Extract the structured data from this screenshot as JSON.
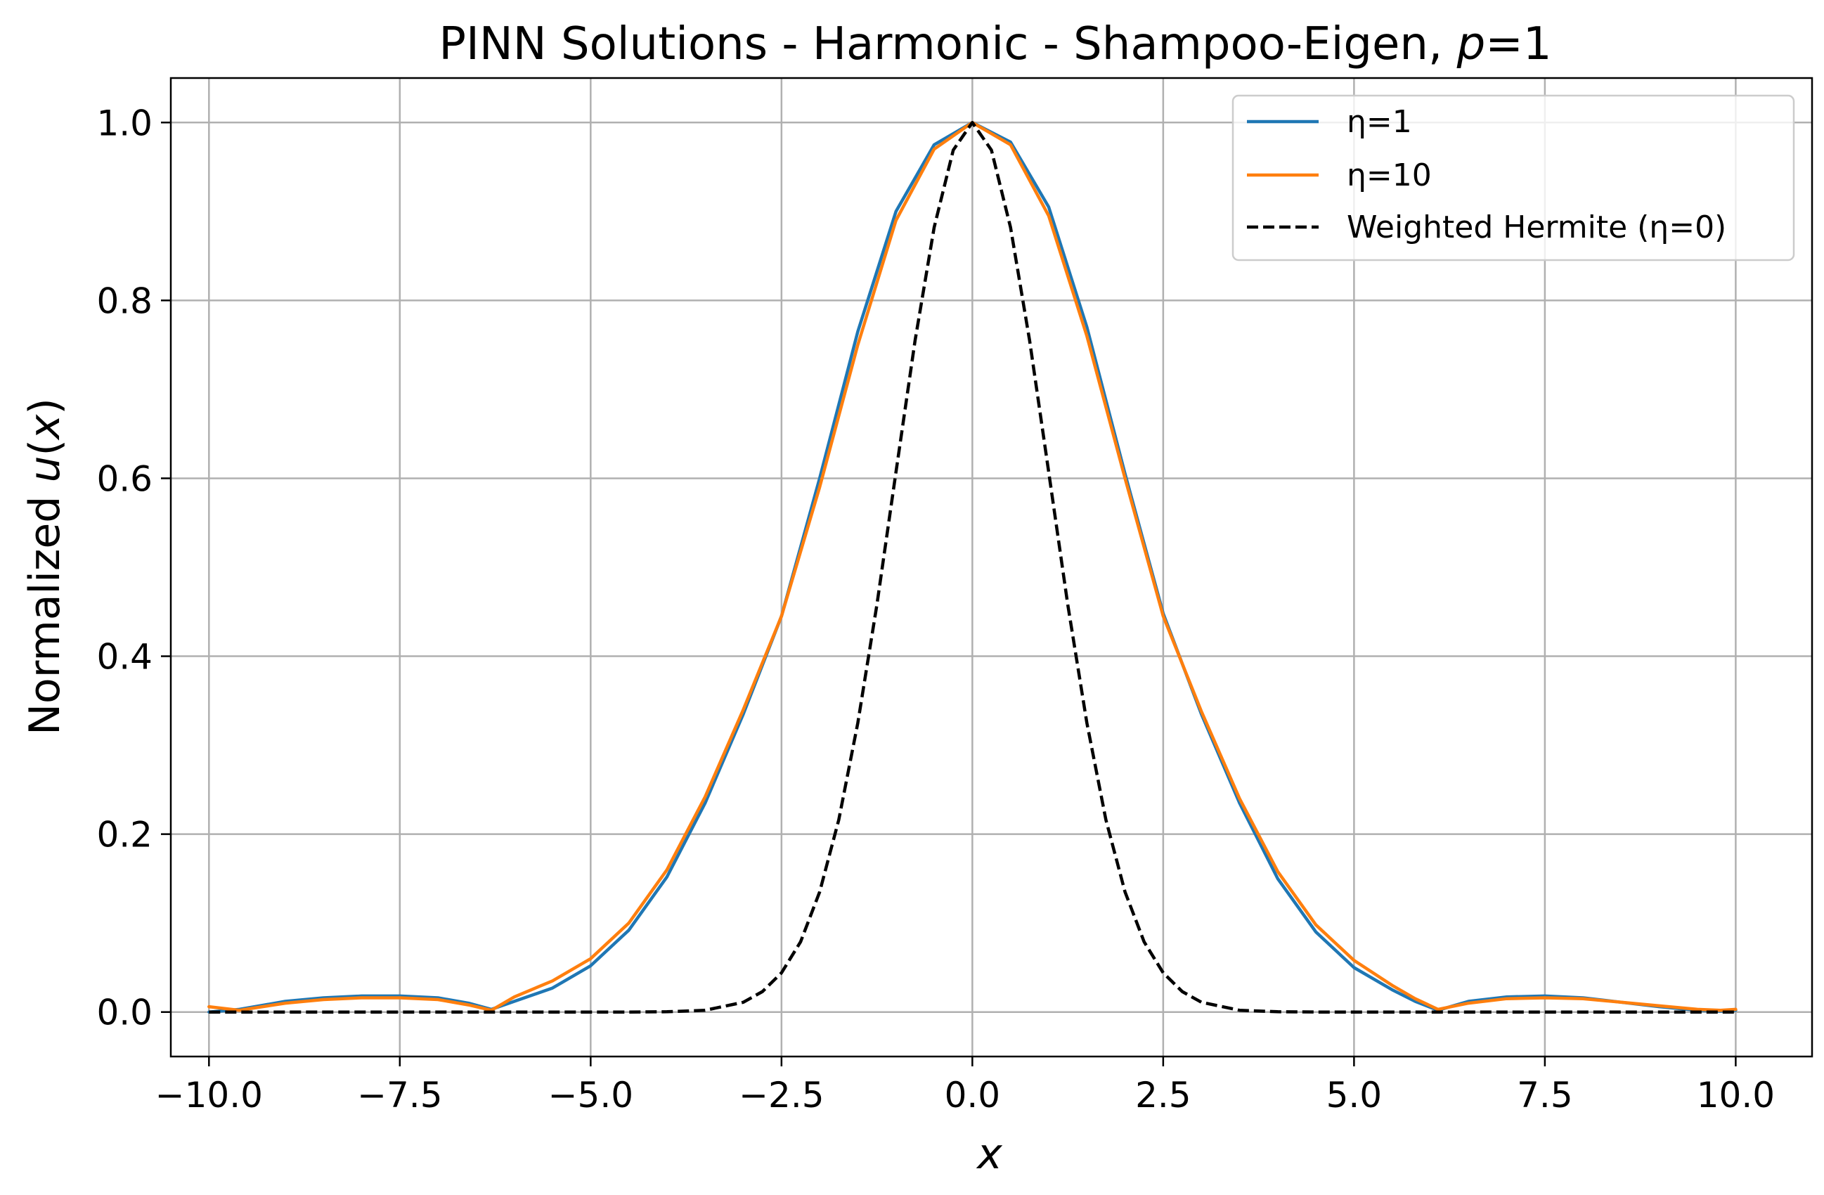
{
  "chart_data": {
    "type": "line",
    "title_parts": [
      "PINN Solutions - Harmonic - Shampoo-Eigen, ",
      "p",
      "=1"
    ],
    "xlabel": "x",
    "ylabel_parts": [
      "Normalized ",
      "u",
      "(",
      "x",
      ")"
    ],
    "xlim": [
      -10.5,
      11.0
    ],
    "ylim": [
      -0.05,
      1.05
    ],
    "x_ticks": [
      -10.0,
      -7.5,
      -5.0,
      -2.5,
      0.0,
      2.5,
      5.0,
      7.5,
      10.0
    ],
    "x_tick_labels": [
      "−10.0",
      "−7.5",
      "−5.0",
      "−2.5",
      "0.0",
      "2.5",
      "5.0",
      "7.5",
      "10.0"
    ],
    "y_ticks": [
      0.0,
      0.2,
      0.4,
      0.6,
      0.8,
      1.0
    ],
    "y_tick_labels": [
      "0.0",
      "0.2",
      "0.4",
      "0.6",
      "0.8",
      "1.0"
    ],
    "grid": true,
    "legend_position": "top-right",
    "series": [
      {
        "name": "η=1",
        "color": "#1f77b4",
        "style": "solid",
        "x": [
          -10.0,
          -9.6,
          -9.0,
          -8.5,
          -8.0,
          -7.5,
          -7.0,
          -6.6,
          -6.3,
          -6.0,
          -5.5,
          -5.0,
          -4.5,
          -4.0,
          -3.5,
          -3.0,
          -2.5,
          -2.0,
          -1.5,
          -1.0,
          -0.5,
          0.0,
          0.5,
          1.0,
          1.5,
          2.0,
          2.5,
          3.0,
          3.5,
          4.0,
          4.5,
          5.0,
          5.5,
          5.8,
          6.1,
          6.5,
          7.0,
          7.5,
          8.0,
          8.5,
          9.0,
          9.5,
          9.8,
          10.0
        ],
        "y": [
          0.0,
          0.003,
          0.012,
          0.016,
          0.018,
          0.018,
          0.016,
          0.01,
          0.003,
          0.012,
          0.027,
          0.052,
          0.092,
          0.152,
          0.235,
          0.335,
          0.445,
          0.6,
          0.765,
          0.9,
          0.975,
          1.0,
          0.978,
          0.905,
          0.77,
          0.605,
          0.448,
          0.335,
          0.235,
          0.15,
          0.09,
          0.05,
          0.025,
          0.012,
          0.002,
          0.012,
          0.017,
          0.018,
          0.016,
          0.011,
          0.006,
          0.002,
          0.001,
          0.002
        ]
      },
      {
        "name": "η=10",
        "color": "#ff7f0e",
        "style": "solid",
        "x": [
          -10.0,
          -9.6,
          -9.0,
          -8.5,
          -8.0,
          -7.5,
          -7.0,
          -6.6,
          -6.3,
          -6.0,
          -5.5,
          -5.0,
          -4.5,
          -4.0,
          -3.5,
          -3.0,
          -2.5,
          -2.0,
          -1.5,
          -1.0,
          -0.5,
          0.0,
          0.5,
          1.0,
          1.5,
          2.0,
          2.5,
          3.0,
          3.5,
          4.0,
          4.5,
          5.0,
          5.5,
          5.8,
          6.1,
          6.5,
          7.0,
          7.5,
          8.0,
          8.5,
          9.0,
          9.5,
          9.8,
          10.0
        ],
        "y": [
          0.006,
          0.002,
          0.01,
          0.014,
          0.016,
          0.016,
          0.014,
          0.008,
          0.002,
          0.017,
          0.035,
          0.06,
          0.1,
          0.16,
          0.242,
          0.34,
          0.445,
          0.59,
          0.75,
          0.89,
          0.97,
          1.0,
          0.975,
          0.895,
          0.76,
          0.6,
          0.445,
          0.338,
          0.24,
          0.158,
          0.098,
          0.058,
          0.03,
          0.015,
          0.003,
          0.01,
          0.015,
          0.016,
          0.015,
          0.011,
          0.007,
          0.003,
          0.002,
          0.003
        ]
      },
      {
        "name": "Weighted Hermite (η=0)",
        "color": "#000000",
        "style": "dashed",
        "x": [
          -10.0,
          -5.0,
          -4.5,
          -4.0,
          -3.5,
          -3.0,
          -2.75,
          -2.5,
          -2.25,
          -2.0,
          -1.75,
          -1.5,
          -1.25,
          -1.0,
          -0.75,
          -0.5,
          -0.25,
          0.0,
          0.25,
          0.5,
          0.75,
          1.0,
          1.25,
          1.5,
          1.75,
          2.0,
          2.25,
          2.5,
          2.75,
          3.0,
          3.5,
          4.0,
          4.5,
          5.0,
          10.0
        ],
        "y": [
          0.0,
          0.0,
          0.0,
          0.0003,
          0.002,
          0.011,
          0.023,
          0.044,
          0.079,
          0.135,
          0.216,
          0.325,
          0.458,
          0.607,
          0.755,
          0.882,
          0.969,
          1.0,
          0.969,
          0.882,
          0.755,
          0.607,
          0.458,
          0.325,
          0.216,
          0.135,
          0.079,
          0.044,
          0.023,
          0.011,
          0.002,
          0.0003,
          0.0,
          0.0,
          0.0
        ]
      }
    ]
  }
}
